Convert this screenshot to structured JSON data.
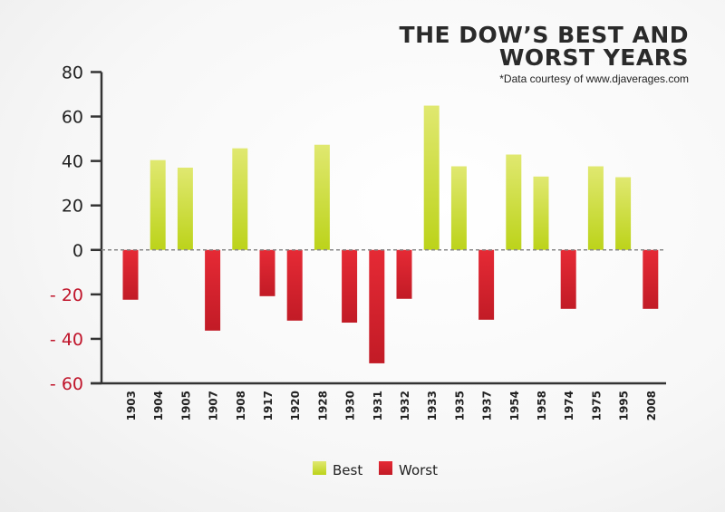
{
  "chart_data": {
    "type": "bar",
    "title_line1": "THE DOW’S BEST AND",
    "title_line2": "WORST YEARS",
    "subtitle": "*Data courtesy of www.djaverages.com",
    "xlabel": "",
    "ylabel": "",
    "ylim": [
      -60,
      80
    ],
    "yticks": [
      80,
      60,
      40,
      20,
      0,
      -20,
      -40,
      -60
    ],
    "ytick_labels": [
      "80",
      "60",
      "40",
      "20",
      "0",
      "- 20",
      "- 40",
      "- 60"
    ],
    "categories": [
      "1903",
      "1904",
      "1905",
      "1907",
      "1908",
      "1917",
      "1920",
      "1928",
      "1930",
      "1931",
      "1932",
      "1933",
      "1935",
      "1937",
      "1954",
      "1958",
      "1974",
      "1975",
      "1995",
      "2008"
    ],
    "values": [
      -22.4,
      40.4,
      37.0,
      -36.3,
      45.7,
      -20.8,
      -31.8,
      47.3,
      -32.7,
      -51.0,
      -22.0,
      64.9,
      37.6,
      -31.4,
      42.9,
      33.0,
      -26.5,
      37.6,
      32.7,
      -26.5
    ],
    "legend": [
      {
        "name": "Best",
        "color": "#c5d82a"
      },
      {
        "name": "Worst",
        "color": "#d9202e"
      }
    ],
    "legend_position": "bottom-center",
    "colors": {
      "best_top": "#e0e870",
      "best_bottom": "#bcd31a",
      "worst_top": "#e52a35",
      "worst_bottom": "#c21b26",
      "negative_tick": "#c0142a",
      "axis": "#333333"
    }
  }
}
